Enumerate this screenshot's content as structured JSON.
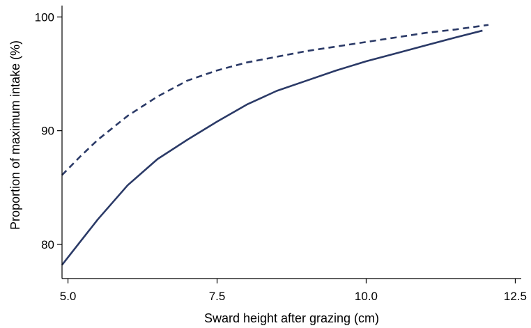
{
  "chart_data": {
    "type": "line",
    "title": "",
    "xlabel": "Sward height after grazing (cm)",
    "ylabel": "Proportion of maximum intake (%)",
    "xlim": [
      4.9,
      12.6
    ],
    "ylim": [
      77,
      101
    ],
    "xticks": [
      5.0,
      7.5,
      10.0,
      12.5
    ],
    "xtick_labels": [
      "5.0",
      "7.5",
      "10.0",
      "12.5"
    ],
    "yticks": [
      80,
      90,
      100
    ],
    "ytick_labels": [
      "80",
      "90",
      "100"
    ],
    "grid": false,
    "legend": "none",
    "series": [
      {
        "style": "dashed",
        "color": "#2b3a67",
        "x": [
          4.9,
          5.2,
          5.5,
          6.0,
          6.5,
          7.0,
          7.5,
          8.0,
          8.5,
          9.0,
          9.5,
          10.0,
          10.5,
          11.0,
          11.5,
          12.05
        ],
        "y": [
          86.1,
          87.7,
          89.2,
          91.3,
          93.0,
          94.4,
          95.3,
          96.0,
          96.5,
          97.0,
          97.4,
          97.8,
          98.2,
          98.6,
          98.9,
          99.3
        ]
      },
      {
        "style": "solid",
        "color": "#2b3a67",
        "x": [
          4.9,
          5.2,
          5.5,
          6.0,
          6.5,
          7.0,
          7.5,
          8.0,
          8.5,
          9.0,
          9.5,
          10.0,
          10.5,
          11.0,
          11.5,
          11.95
        ],
        "y": [
          78.2,
          80.2,
          82.2,
          85.2,
          87.5,
          89.2,
          90.8,
          92.3,
          93.5,
          94.4,
          95.3,
          96.1,
          96.8,
          97.5,
          98.2,
          98.8
        ]
      }
    ]
  }
}
